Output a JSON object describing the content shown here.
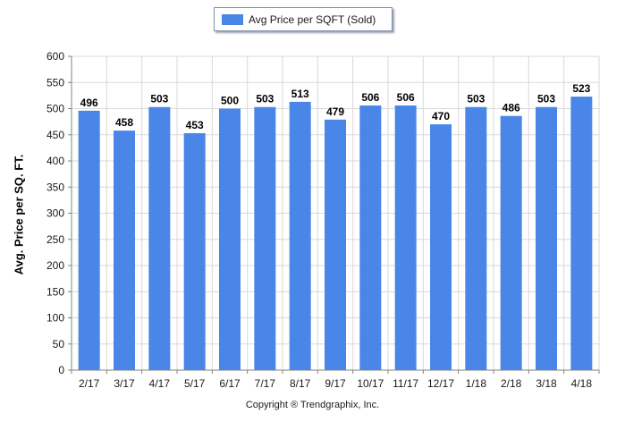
{
  "chart_data": {
    "type": "bar",
    "categories": [
      "2/17",
      "3/17",
      "4/17",
      "5/17",
      "6/17",
      "7/17",
      "8/17",
      "9/17",
      "10/17",
      "11/17",
      "12/17",
      "1/18",
      "2/18",
      "3/18",
      "4/18"
    ],
    "series": [
      {
        "name": "Avg Price per SQFT (Sold)",
        "values": [
          496,
          458,
          503,
          453,
          500,
          503,
          513,
          479,
          506,
          506,
          470,
          503,
          486,
          503,
          523
        ]
      }
    ],
    "ylabel": "Avg. Price per SQ. FT.",
    "xlabel": "",
    "ylim": [
      0,
      600
    ],
    "yticks": [
      0,
      50,
      100,
      150,
      200,
      250,
      300,
      350,
      400,
      450,
      500,
      550,
      600
    ],
    "grid": true,
    "legend_position": "top-center",
    "data_labels": true,
    "bar_color": "#4a86e8",
    "grid_color": "#d9d9d9"
  },
  "footer": {
    "copyright": "Copyright ® Trendgraphix, Inc."
  }
}
